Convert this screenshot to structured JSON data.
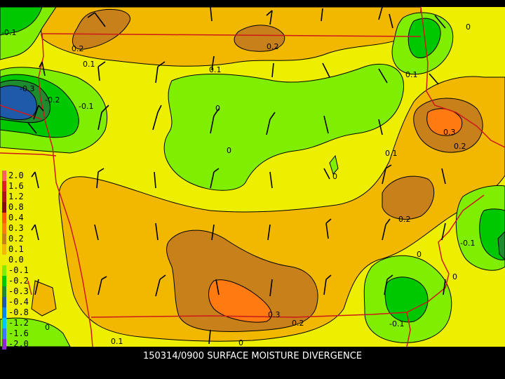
{
  "title": "150314/0900 SURFACE MOISTURE DIVERGENCE",
  "legend": [
    {
      "label": "2.0",
      "color": "#ff5e5e"
    },
    {
      "label": "1.6",
      "color": "#e01e1e"
    },
    {
      "label": "1.2",
      "color": "#b01212"
    },
    {
      "label": "0.8",
      "color": "#8a0a0a"
    },
    {
      "label": "0.4",
      "color": "#ff5a00"
    },
    {
      "label": "0.3",
      "color": "#ff7b12"
    },
    {
      "label": "0.2",
      "color": "#c8801a"
    },
    {
      "label": "0.1",
      "color": "#f2b800"
    },
    {
      "label": "0.0",
      "color": "#eeee00"
    },
    {
      "label": "-0.1",
      "color": "#80ee00"
    },
    {
      "label": "-0.2",
      "color": "#00c800"
    },
    {
      "label": "-0.3",
      "color": "#1e8c2e"
    },
    {
      "label": "-0.4",
      "color": "#1e5aa8"
    },
    {
      "label": "-0.8",
      "color": "#0a8ae6"
    },
    {
      "label": "-1.2",
      "color": "#00c8ff"
    },
    {
      "label": "-1.6",
      "color": "#3c78ff"
    },
    {
      "label": "-2.0",
      "color": "#8c28d2"
    }
  ],
  "contour_labels": [
    {
      "text": "-0.1"
    },
    {
      "text": "0.2"
    },
    {
      "text": "0.2"
    },
    {
      "text": "0"
    },
    {
      "text": "0.1"
    },
    {
      "text": "0.1"
    },
    {
      "text": "0.1"
    },
    {
      "text": "-0.3"
    },
    {
      "text": "-0.2"
    },
    {
      "text": "-0.1"
    },
    {
      "text": "0"
    },
    {
      "text": "0"
    },
    {
      "text": "0.3"
    },
    {
      "text": "0.2"
    },
    {
      "text": "0.1"
    },
    {
      "text": "0"
    },
    {
      "text": "0.2"
    },
    {
      "text": "0"
    },
    {
      "text": "-0.1"
    },
    {
      "text": "0"
    },
    {
      "text": "0.3"
    },
    {
      "text": "0.2"
    },
    {
      "text": "-0.1"
    },
    {
      "text": "0"
    },
    {
      "text": "0.1"
    },
    {
      "text": "0"
    }
  ]
}
